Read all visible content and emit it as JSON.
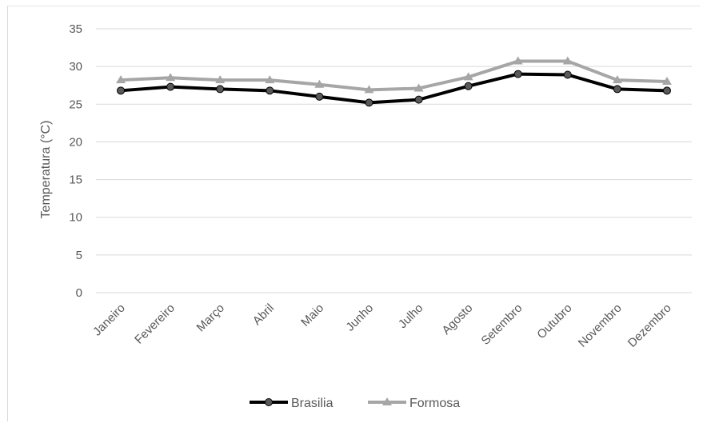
{
  "chart_data": {
    "type": "line",
    "categories": [
      "Janeiro",
      "Fevereiro",
      "Março",
      "Abril",
      "Maio",
      "Junho",
      "Julho",
      "Agosto",
      "Setembro",
      "Outubro",
      "Novembro",
      "Dezembro"
    ],
    "series": [
      {
        "name": "Brasilia",
        "values": [
          26.8,
          27.3,
          27.0,
          26.8,
          26.0,
          25.2,
          25.6,
          27.4,
          29.0,
          28.9,
          27.0,
          26.8
        ],
        "color": "#000000",
        "marker_color": "#595959",
        "marker": "circle"
      },
      {
        "name": "Formosa",
        "values": [
          28.2,
          28.5,
          28.2,
          28.2,
          27.6,
          26.9,
          27.1,
          28.6,
          30.7,
          30.7,
          28.2,
          28.0
        ],
        "color": "#a6a6a6",
        "marker_color": "#a6a6a6",
        "marker": "triangle"
      }
    ],
    "ylabel": "Temperatura (°C)",
    "xlabel": "",
    "ylim": [
      0,
      35
    ],
    "yticks": [
      0,
      5,
      10,
      15,
      20,
      25,
      30,
      35
    ],
    "grid": true,
    "legend": "bottom"
  }
}
